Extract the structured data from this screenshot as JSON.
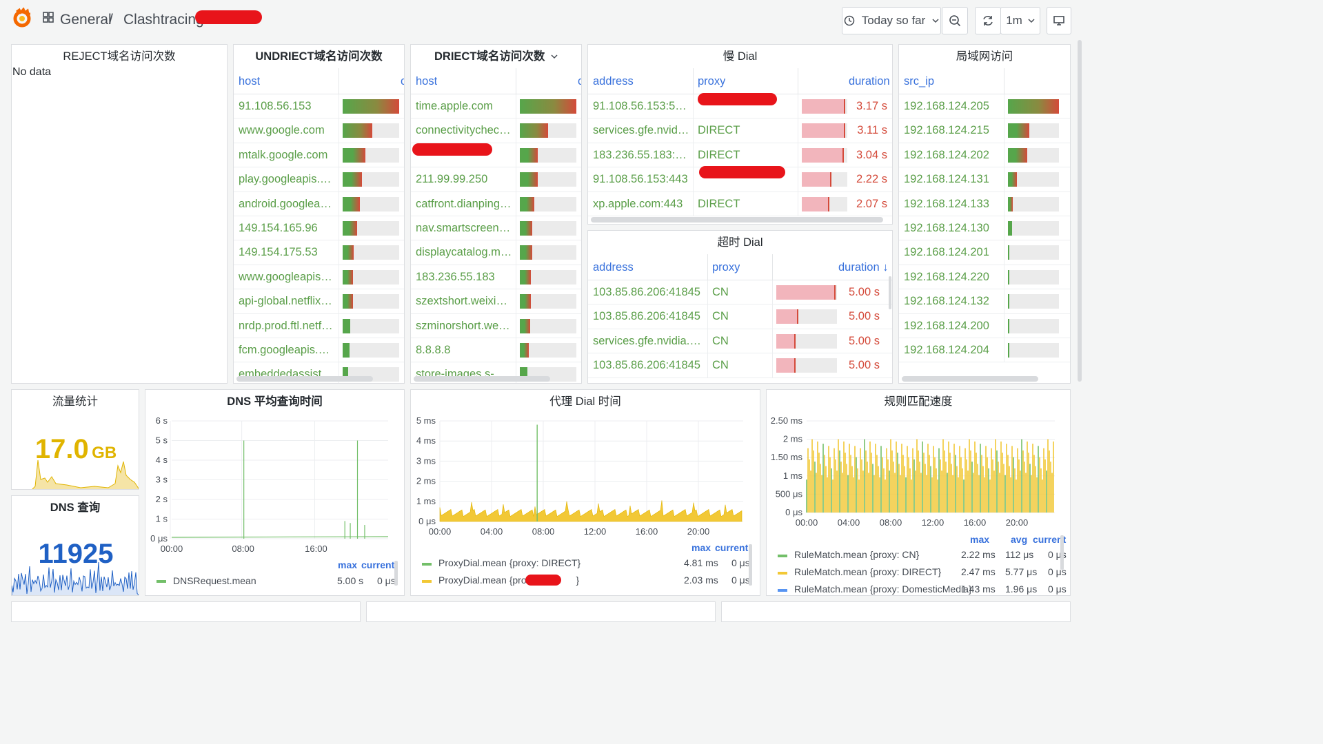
{
  "nav": {
    "breadcrumb_folder": "General",
    "breadcrumb_sep": "/",
    "breadcrumb_dashboard": "Clashtracing",
    "time_range": "Today so far",
    "refresh_interval": "1m"
  },
  "panels": {
    "reject": {
      "title": "REJECT域名访问次数",
      "empty": "No data"
    },
    "undirect": {
      "title": "UNDRIECT域名访问次数",
      "col_host": "host",
      "col_count_trunc": "c",
      "rows": [
        {
          "host": "91.108.56.153",
          "level": 1.0
        },
        {
          "host": "www.google.com",
          "level": 0.52
        },
        {
          "host": "mtalk.google.com",
          "level": 0.4
        },
        {
          "host": "play.googleapis.com",
          "level": 0.34
        },
        {
          "host": "android.googleapis....",
          "level": 0.3
        },
        {
          "host": "149.154.165.96",
          "level": 0.26
        },
        {
          "host": "149.154.175.53",
          "level": 0.2
        },
        {
          "host": "www.googleapis.com",
          "level": 0.18
        },
        {
          "host": "api-global.netflix.com",
          "level": 0.18
        },
        {
          "host": "nrdp.prod.ftl.netflix....",
          "level": 0.14
        },
        {
          "host": "fcm.googleapis.com",
          "level": 0.12
        },
        {
          "host": "embeddedassistant....",
          "level": 0.1
        }
      ]
    },
    "direct": {
      "title": "DRIECT域名访问次数",
      "col_host": "host",
      "col_count_trunc": "c",
      "rows": [
        {
          "host": "time.apple.com",
          "level": 1.0
        },
        {
          "host": "connectivitycheck.g...",
          "level": 0.5
        },
        {
          "host": "",
          "level": 0.32
        },
        {
          "host": "211.99.99.250",
          "level": 0.32
        },
        {
          "host": "catfront.dianping.co...",
          "level": 0.26
        },
        {
          "host": "nav.smartscreen.mi...",
          "level": 0.22
        },
        {
          "host": "displaycatalog.mp....",
          "level": 0.22
        },
        {
          "host": "183.236.55.183",
          "level": 0.2
        },
        {
          "host": "szextshort.weixin.q...",
          "level": 0.2
        },
        {
          "host": "szminorshort.weixin...",
          "level": 0.18
        },
        {
          "host": "8.8.8.8",
          "level": 0.16
        },
        {
          "host": "store-images.s-micr...",
          "level": 0.14
        }
      ]
    },
    "slow_dial": {
      "title": "慢 Dial",
      "col_address": "address",
      "col_proxy": "proxy",
      "col_duration": "duration",
      "sort_icon": "arrow-down-icon",
      "rows": [
        {
          "address": "91.108.56.153:5222",
          "proxy": "",
          "duration": "3.17 s",
          "level": 0.95
        },
        {
          "address": "services.gfe.nvidia.c...",
          "proxy": "DIRECT",
          "duration": "3.11 s",
          "level": 0.95
        },
        {
          "address": "183.236.55.183:498...",
          "proxy": "DIRECT",
          "duration": "3.04 s",
          "level": 0.92
        },
        {
          "address": "91.108.56.153:443",
          "proxy": "",
          "duration": "2.22 s",
          "level": 0.65
        },
        {
          "address": "xp.apple.com:443",
          "proxy": "DIRECT",
          "duration": "2.07 s",
          "level": 0.6
        }
      ]
    },
    "timeout_dial": {
      "title": "超时 Dial",
      "col_address": "address",
      "col_proxy": "proxy",
      "col_duration": "duration",
      "sort_icon": "arrow-down-icon",
      "rows": [
        {
          "address": "103.85.86.206:41845",
          "proxy": "CN",
          "duration": "5.00 s",
          "level": 0.98
        },
        {
          "address": "103.85.86.206:41845",
          "proxy": "CN",
          "duration": "5.00 s",
          "level": 0.36
        },
        {
          "address": "services.gfe.nvidia.com...",
          "proxy": "CN",
          "duration": "5.00 s",
          "level": 0.32
        },
        {
          "address": "103.85.86.206:41845",
          "proxy": "CN",
          "duration": "5.00 s",
          "level": 0.32
        }
      ]
    },
    "lan": {
      "title": "局域网访问",
      "col_src_ip": "src_ip",
      "rows": [
        {
          "ip": "192.168.124.205",
          "level": 1.0
        },
        {
          "ip": "192.168.124.215",
          "level": 0.42
        },
        {
          "ip": "192.168.124.202",
          "level": 0.38
        },
        {
          "ip": "192.168.124.131",
          "level": 0.18
        },
        {
          "ip": "192.168.124.133",
          "level": 0.1
        },
        {
          "ip": "192.168.124.130",
          "level": 0.08
        },
        {
          "ip": "192.168.124.201",
          "level": 0.03
        },
        {
          "ip": "192.168.124.220",
          "level": 0.03
        },
        {
          "ip": "192.168.124.132",
          "level": 0.03
        },
        {
          "ip": "192.168.124.200",
          "level": 0.03
        },
        {
          "ip": "192.168.124.204",
          "level": 0.03
        }
      ]
    },
    "traffic": {
      "title": "流量统计",
      "value": "17.0",
      "unit": "GB",
      "color": "#e0b400"
    },
    "dns_count": {
      "title": "DNS 查询",
      "value": "11925",
      "color": "#1f60c4"
    },
    "dns_time": {
      "title": "DNS 平均查询时间",
      "legend_max": "max",
      "legend_current": "current",
      "series": [
        {
          "name": "DNSRequest.mean",
          "max": "5.00 s",
          "current": "0 μs",
          "color": "#73bf69"
        }
      ]
    },
    "proxy_dial": {
      "title": "代理 Dial 时间",
      "legend_max": "max",
      "legend_current": "current",
      "series": [
        {
          "name": "ProxyDial.mean {proxy: DIRECT}",
          "max": "4.81 ms",
          "current": "0 μs",
          "color": "#73bf69"
        },
        {
          "name": "ProxyDial.mean {proxy:",
          "suffix": "}",
          "max": "2.03 ms",
          "current": "0 μs",
          "color": "#f2c836"
        }
      ]
    },
    "rule_match": {
      "title": "规则匹配速度",
      "legend_max": "max",
      "legend_avg": "avg",
      "legend_current": "current",
      "series": [
        {
          "name": "RuleMatch.mean {proxy: CN}",
          "max": "2.22 ms",
          "avg": "112 μs",
          "current": "0 μs",
          "color": "#73bf69"
        },
        {
          "name": "RuleMatch.mean {proxy: DIRECT}",
          "max": "2.47 ms",
          "avg": "5.77 μs",
          "current": "0 μs",
          "color": "#f2c836"
        },
        {
          "name": "RuleMatch.mean {proxy: DomesticMedia}",
          "max": "1.43 ms",
          "avg": "1.96 μs",
          "current": "0 μs",
          "color": "#5794f2"
        }
      ]
    }
  },
  "chart_data": [
    {
      "type": "line",
      "title": "DNS 平均查询时间",
      "x_ticks": [
        "00:00",
        "08:00",
        "16:00"
      ],
      "y_ticks": [
        "0 μs",
        "1 s",
        "2 s",
        "3 s",
        "4 s",
        "5 s",
        "6 s"
      ],
      "ylim": [
        0,
        6
      ],
      "series": [
        {
          "name": "DNSRequest.mean",
          "spikes_hours": [
            [
              8.0,
              5.0
            ],
            [
              20.6,
              5.0
            ],
            [
              19.2,
              0.9
            ],
            [
              19.8,
              0.8
            ],
            [
              21.4,
              0.7
            ]
          ],
          "baseline": 0.05
        }
      ]
    },
    {
      "type": "area",
      "title": "代理 Dial 时间",
      "x_ticks": [
        "00:00",
        "04:00",
        "08:00",
        "12:00",
        "16:00",
        "20:00"
      ],
      "y_ticks": [
        "0 μs",
        "1 ms",
        "2 ms",
        "3 ms",
        "4 ms",
        "5 ms"
      ],
      "ylim": [
        0,
        5
      ],
      "series": [
        {
          "name": "ProxyDial.mean {proxy: DIRECT}",
          "spike": [
            7.7,
            4.81
          ]
        },
        {
          "name": "ProxyDial.mean {proxy: ...}",
          "typical_max": 2.03
        }
      ]
    },
    {
      "type": "area",
      "title": "规则匹配速度",
      "x_ticks": [
        "00:00",
        "04:00",
        "08:00",
        "12:00",
        "16:00",
        "20:00"
      ],
      "y_ticks": [
        "0 μs",
        "500 μs",
        "1 ms",
        "1.50 ms",
        "2 ms",
        "2.50 ms"
      ],
      "ylim": [
        0,
        2.5
      ]
    }
  ]
}
